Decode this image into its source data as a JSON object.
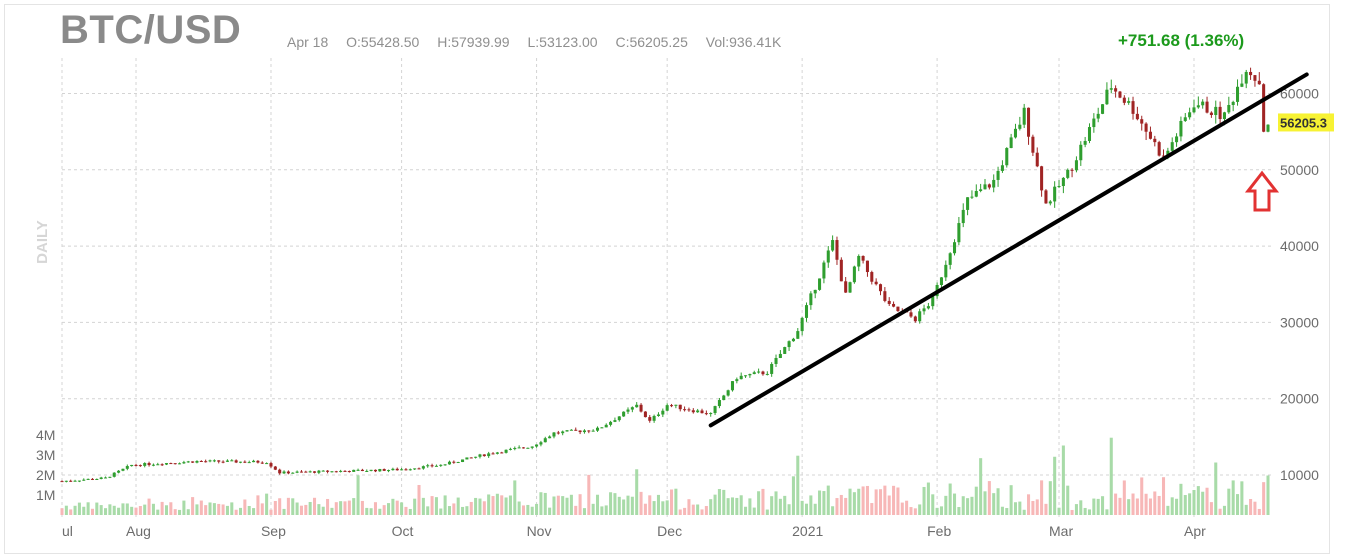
{
  "header": {
    "symbol": "BTC/USD",
    "date": "Apr 18",
    "open": "O:55428.50",
    "high": "H:57939.99",
    "low": "L:53123.00",
    "close": "C:56205.25",
    "volume": "Vol:936.41K",
    "change": "+751.68 (1.36%)",
    "period": "DAILY"
  },
  "colors": {
    "up": "#2f9e2f",
    "down": "#a02424",
    "vol_up": "#a8dba8",
    "vol_down": "#f7b7b7",
    "trendline": "#000000",
    "arrow": "#e23232",
    "last_price_bg": "#f7f233"
  },
  "chart_data": {
    "type": "candlestick",
    "x_tick_labels": [
      "ul",
      "Aug",
      "Sep",
      "Oct",
      "Nov",
      "Dec",
      "2021",
      "Feb",
      "Mar",
      "Apr"
    ],
    "y_ticks": [
      10000,
      20000,
      30000,
      40000,
      50000,
      60000
    ],
    "y_tick_labels": [
      "10000",
      "20000",
      "30000",
      "40000",
      "50000",
      "60000"
    ],
    "ylim": [
      5000,
      65000
    ],
    "volume_tick_labels": [
      "4M",
      "3M",
      "2M",
      "1M"
    ],
    "volume_ylim": [
      0,
      5000000
    ],
    "last_price": 56205.25,
    "last_price_label": "56205.3",
    "price_anchors": [
      {
        "date": "2020-07-15",
        "close": 9200
      },
      {
        "date": "2020-07-25",
        "close": 9600
      },
      {
        "date": "2020-07-31",
        "close": 11300
      },
      {
        "date": "2020-08-15",
        "close": 11800
      },
      {
        "date": "2020-08-31",
        "close": 11700
      },
      {
        "date": "2020-09-03",
        "close": 10300
      },
      {
        "date": "2020-09-30",
        "close": 10700
      },
      {
        "date": "2020-10-10",
        "close": 11300
      },
      {
        "date": "2020-10-21",
        "close": 12800
      },
      {
        "date": "2020-10-31",
        "close": 13800
      },
      {
        "date": "2020-11-05",
        "close": 15500
      },
      {
        "date": "2020-11-15",
        "close": 16000
      },
      {
        "date": "2020-11-24",
        "close": 19100
      },
      {
        "date": "2020-11-27",
        "close": 17000
      },
      {
        "date": "2020-12-01",
        "close": 19200
      },
      {
        "date": "2020-12-11",
        "close": 18000
      },
      {
        "date": "2020-12-17",
        "close": 22800
      },
      {
        "date": "2020-12-24",
        "close": 23500
      },
      {
        "date": "2020-12-31",
        "close": 29000
      },
      {
        "date": "2021-01-08",
        "close": 40500
      },
      {
        "date": "2021-01-11",
        "close": 33500
      },
      {
        "date": "2021-01-14",
        "close": 38500
      },
      {
        "date": "2021-01-21",
        "close": 32000
      },
      {
        "date": "2021-01-27",
        "close": 30500
      },
      {
        "date": "2021-01-31",
        "close": 33000
      },
      {
        "date": "2021-02-08",
        "close": 46000
      },
      {
        "date": "2021-02-14",
        "close": 48500
      },
      {
        "date": "2021-02-21",
        "close": 57500
      },
      {
        "date": "2021-02-26",
        "close": 45500
      },
      {
        "date": "2021-03-03",
        "close": 49500
      },
      {
        "date": "2021-03-13",
        "close": 61000
      },
      {
        "date": "2021-03-18",
        "close": 58000
      },
      {
        "date": "2021-03-25",
        "close": 51500
      },
      {
        "date": "2021-04-01",
        "close": 58800
      },
      {
        "date": "2021-04-08",
        "close": 57000
      },
      {
        "date": "2021-04-13",
        "close": 63500
      },
      {
        "date": "2021-04-16",
        "close": 61500
      },
      {
        "date": "2021-04-17",
        "close": 55400
      },
      {
        "date": "2021-04-18",
        "close": 56205
      }
    ],
    "trendline": {
      "start": {
        "date": "2020-12-11",
        "price": 16500
      },
      "end": {
        "date": "2021-04-20",
        "price": 62500
      }
    },
    "annotation": {
      "type": "arrow-up",
      "date": "2021-04-18",
      "price": 48000
    }
  }
}
